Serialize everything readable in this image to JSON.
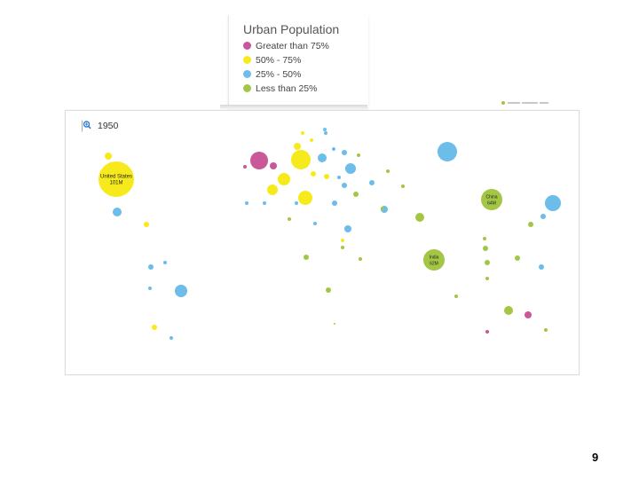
{
  "legend": {
    "title": "Urban Population",
    "items": [
      {
        "label": "Greater than 75%",
        "color": "#c9579a"
      },
      {
        "label": "50% - 75%",
        "color": "#f7ea1c"
      },
      {
        "label": "25% - 50%",
        "color": "#6cbde9"
      },
      {
        "label": "Less than 25%",
        "color": "#a3c644"
      }
    ]
  },
  "map": {
    "year": "1950",
    "zoom_icon": "zoom-in-icon"
  },
  "page_number": "9",
  "chart_data": {
    "type": "bubble-map",
    "title": "Urban Population",
    "year": "1950",
    "categories": [
      "Greater than 75%",
      "50% - 75%",
      "25% - 50%",
      "Less than 25%"
    ],
    "points": [
      {
        "cat": 1,
        "label": "United States\n101M"
      },
      {
        "cat": 3,
        "label": "China\n64M"
      },
      {
        "cat": 3,
        "label": "India\n62M"
      },
      {
        "cat": 0
      },
      {
        "cat": 0
      },
      {
        "cat": 0
      },
      {
        "cat": 0
      },
      {
        "cat": 0
      },
      {
        "cat": 1
      },
      {
        "cat": 1
      },
      {
        "cat": 1
      },
      {
        "cat": 1
      },
      {
        "cat": 1
      },
      {
        "cat": 1
      },
      {
        "cat": 1
      },
      {
        "cat": 1
      },
      {
        "cat": 1
      },
      {
        "cat": 1
      },
      {
        "cat": 1
      },
      {
        "cat": 1
      },
      {
        "cat": 1
      },
      {
        "cat": 1
      },
      {
        "cat": 2
      },
      {
        "cat": 2
      },
      {
        "cat": 2
      },
      {
        "cat": 2
      },
      {
        "cat": 2
      },
      {
        "cat": 2
      },
      {
        "cat": 2
      },
      {
        "cat": 2
      },
      {
        "cat": 2
      },
      {
        "cat": 2
      },
      {
        "cat": 2
      },
      {
        "cat": 2
      },
      {
        "cat": 2
      },
      {
        "cat": 2
      },
      {
        "cat": 2
      },
      {
        "cat": 2
      },
      {
        "cat": 2
      },
      {
        "cat": 2
      },
      {
        "cat": 2
      },
      {
        "cat": 2
      },
      {
        "cat": 2
      },
      {
        "cat": 2
      },
      {
        "cat": 2
      },
      {
        "cat": 2
      },
      {
        "cat": 2
      },
      {
        "cat": 2
      },
      {
        "cat": 3
      },
      {
        "cat": 3
      },
      {
        "cat": 3
      },
      {
        "cat": 3
      },
      {
        "cat": 3
      },
      {
        "cat": 3
      },
      {
        "cat": 3
      },
      {
        "cat": 3
      },
      {
        "cat": 3
      },
      {
        "cat": 3
      },
      {
        "cat": 3
      },
      {
        "cat": 3
      },
      {
        "cat": 3
      },
      {
        "cat": 3
      },
      {
        "cat": 3
      },
      {
        "cat": 3
      },
      {
        "cat": 3
      },
      {
        "cat": 3
      },
      {
        "cat": 3
      },
      {
        "cat": 3
      },
      {
        "cat": 3
      }
    ]
  }
}
